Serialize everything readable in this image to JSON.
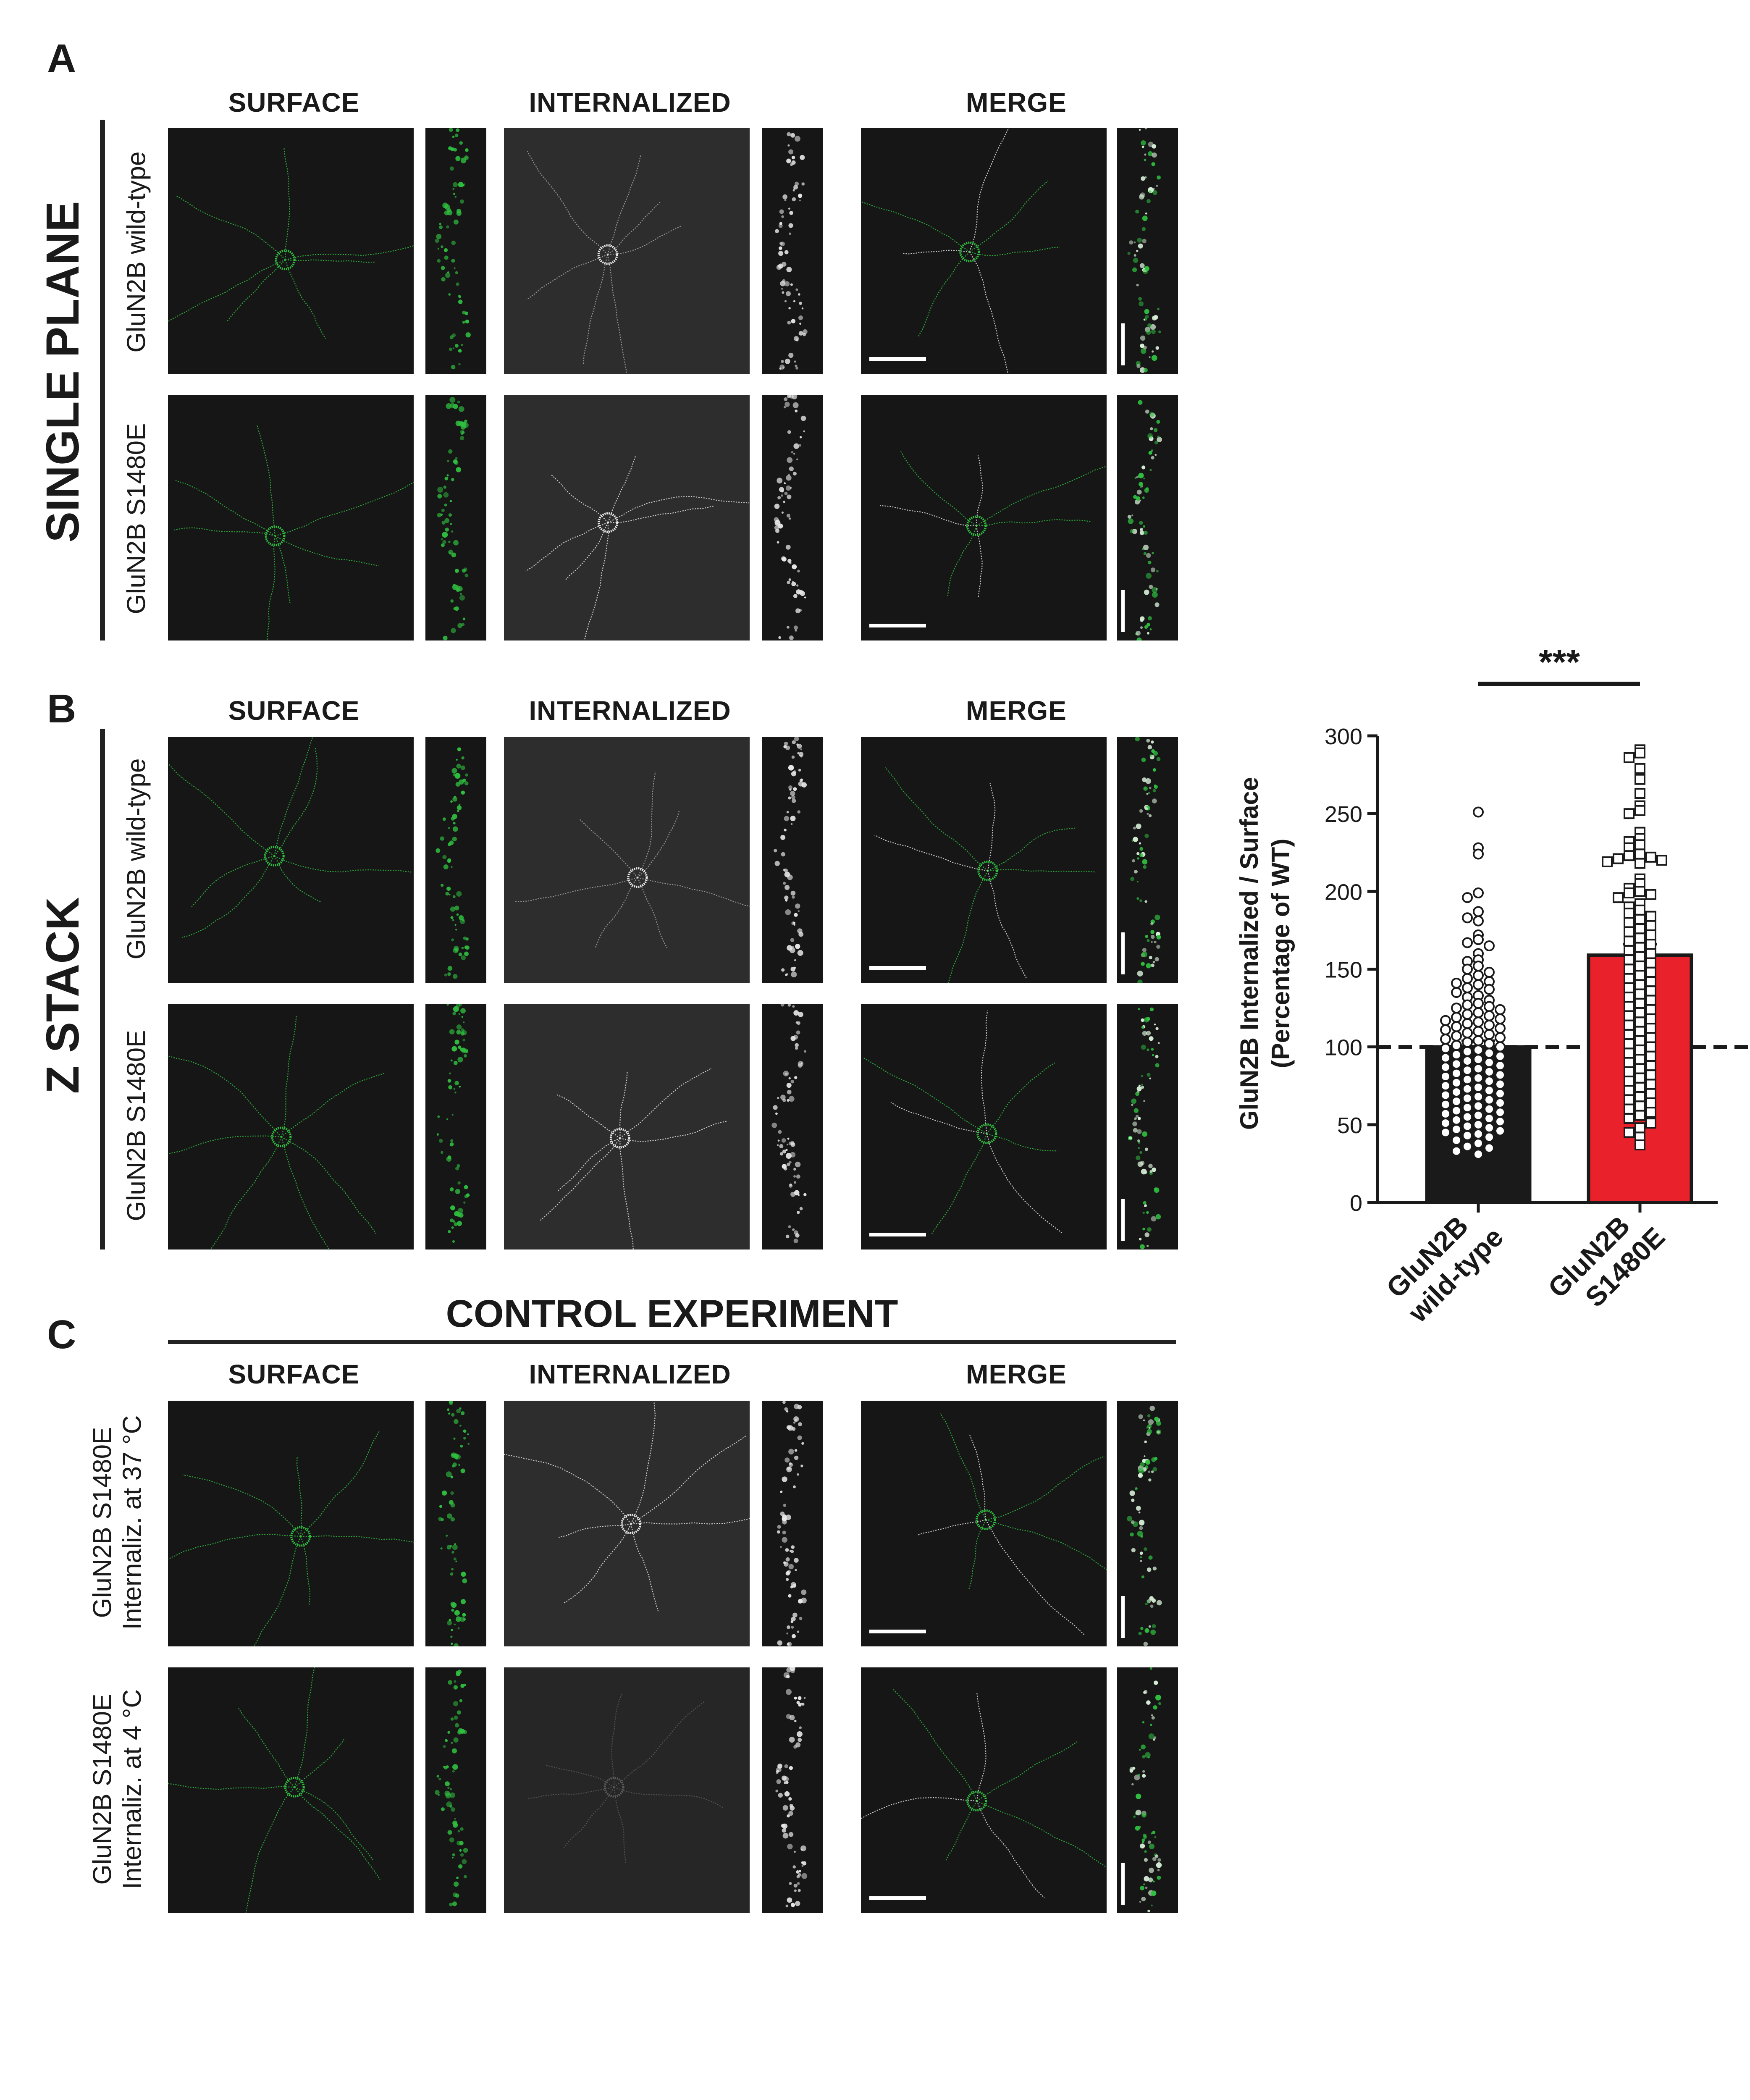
{
  "panels": {
    "a_letter": "A",
    "b_letter": "B",
    "c_letter": "C"
  },
  "column_headers": {
    "surface": "SURFACE",
    "internalized": "INTERNALIZED",
    "merge": "MERGE"
  },
  "panel_a": {
    "side_title": "SINGLE PLANE",
    "rows": [
      "GluN2B wild-type",
      "GluN2B S1480E"
    ]
  },
  "panel_b": {
    "side_title": "Z STACK",
    "rows": [
      "GluN2B wild-type",
      "GluN2B S1480E"
    ]
  },
  "panel_c": {
    "title": "CONTROL EXPERIMENT",
    "rows": [
      {
        "line1": "GluN2B S1480E",
        "line2": "Internaliz. at 37 °C"
      },
      {
        "line1": "GluN2B S1480E",
        "line2": "Internaliz. at 4 °C"
      }
    ]
  },
  "colors": {
    "surface_green": "#2fbf3f",
    "internalized_white": "#e8e8e8",
    "bar_wt": "#1a1a1a",
    "bar_s1480e": "#e8212a",
    "image_background": "#161616"
  },
  "chart_data": {
    "type": "bar",
    "categories": [
      "GluN2B wild-type",
      "GluN2B S1480E"
    ],
    "category_labels": [
      {
        "line1": "GluN2B",
        "line2": "wild-type"
      },
      {
        "line1": "GluN2B",
        "line2": "S1480E"
      }
    ],
    "values": [
      100,
      159
    ],
    "sem": [
      4,
      7
    ],
    "ylabel_line1": "GluN2B Internalized / Surface",
    "ylabel_line2": "(Percentage of WT)",
    "ylim": [
      0,
      300
    ],
    "yticks": [
      0,
      50,
      100,
      150,
      200,
      250,
      300
    ],
    "reference_line": 100,
    "significance": "***",
    "points": {
      "GluN2B wild-type": [
        251,
        228,
        224,
        199,
        196,
        187,
        183,
        181,
        172,
        169,
        167,
        165,
        160,
        156,
        155,
        152,
        150,
        148,
        146,
        144,
        142,
        141,
        140,
        138,
        137,
        135,
        133,
        132,
        130,
        128,
        127,
        126,
        125,
        124,
        122,
        121,
        120,
        119,
        118,
        117,
        116,
        115,
        114,
        113,
        112,
        111,
        110,
        109,
        108,
        107,
        106,
        105,
        104,
        103,
        102,
        101,
        100,
        99,
        98,
        97,
        96,
        95,
        94,
        93,
        92,
        91,
        90,
        89,
        88,
        87,
        86,
        85,
        84,
        83,
        82,
        81,
        80,
        79,
        78,
        77,
        76,
        75,
        74,
        73,
        72,
        71,
        70,
        69,
        68,
        67,
        66,
        65,
        64,
        63,
        62,
        61,
        60,
        59,
        58,
        57,
        56,
        55,
        54,
        53,
        52,
        51,
        50,
        49,
        48,
        47,
        46,
        45,
        44,
        43,
        42,
        40,
        38,
        36,
        35,
        33,
        31
      ],
      "GluN2B S1480E": [
        291,
        289,
        286,
        279,
        272,
        263,
        255,
        252,
        250,
        238,
        234,
        232,
        230,
        228,
        224,
        223,
        222,
        221,
        220,
        219,
        218,
        208,
        205,
        202,
        200,
        199,
        198,
        196,
        192,
        190,
        188,
        186,
        184,
        182,
        180,
        178,
        176,
        174,
        172,
        170,
        168,
        166,
        164,
        162,
        160,
        158,
        156,
        154,
        152,
        150,
        148,
        146,
        144,
        142,
        140,
        138,
        136,
        134,
        132,
        130,
        128,
        126,
        124,
        122,
        120,
        118,
        116,
        114,
        112,
        110,
        108,
        106,
        104,
        102,
        100,
        98,
        96,
        94,
        92,
        90,
        88,
        86,
        84,
        82,
        80,
        78,
        76,
        74,
        72,
        70,
        68,
        66,
        64,
        62,
        60,
        58,
        56,
        54,
        51,
        48,
        45,
        42,
        37
      ]
    }
  }
}
